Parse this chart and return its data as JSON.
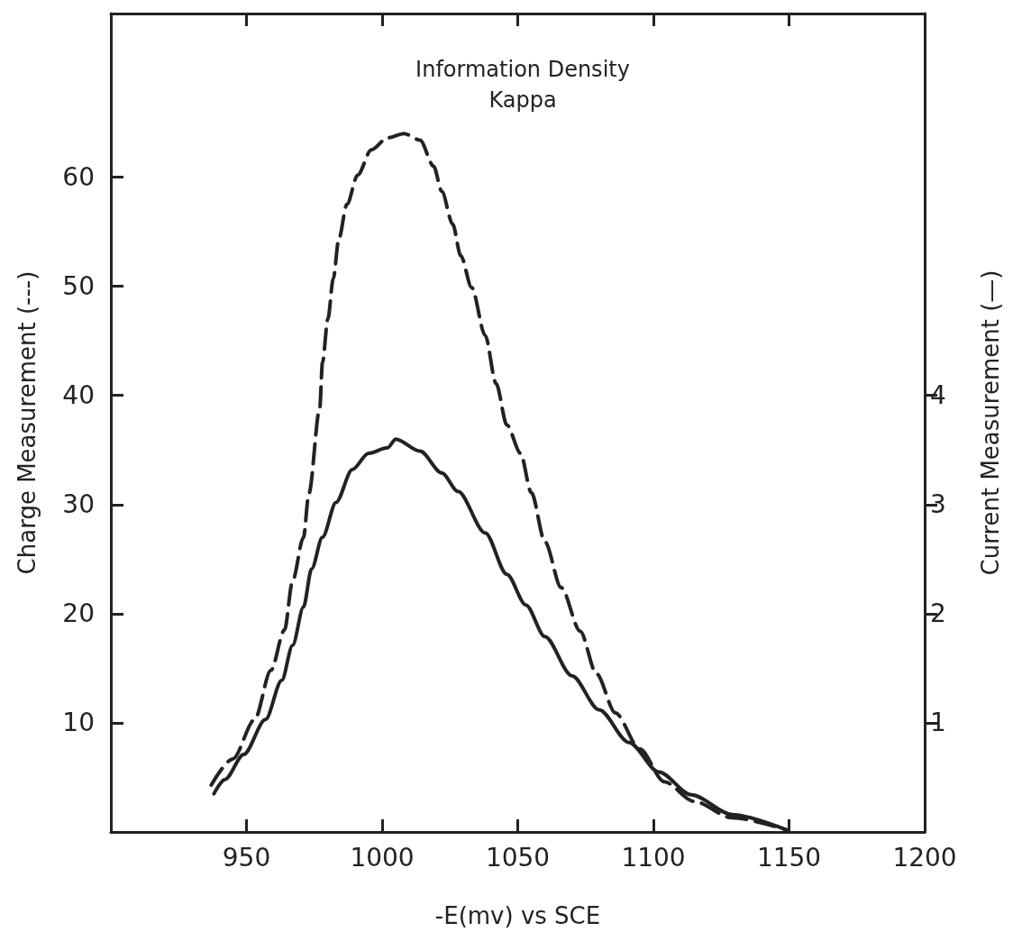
{
  "chart_data": {
    "type": "line",
    "title": "Information Density",
    "subtitle": "Kappa",
    "xlabel": "-E(mv) vs SCE",
    "ylabel": "Charge Measurement (---)",
    "y2label": "Current Measurement (—)",
    "xlim": [
      900,
      1200
    ],
    "xticks": [
      950,
      1000,
      1050,
      1100,
      1150,
      1200
    ],
    "ylim": [
      0,
      75
    ],
    "yticks": [
      10,
      20,
      30,
      40,
      50,
      60
    ],
    "y2lim": [
      0,
      7.5
    ],
    "y2ticks": [
      1,
      2,
      3,
      4
    ],
    "grid": false,
    "marker": "none",
    "series": [
      {
        "color": "#222222",
        "line_style": "dashed",
        "x": [
          937,
          945,
          953,
          959,
          964,
          967,
          971,
          973,
          977,
          978,
          980,
          982,
          984,
          987,
          991,
          996,
          1002,
          1008,
          1014,
          1019,
          1022,
          1026,
          1029,
          1033,
          1038,
          1042,
          1046,
          1051,
          1055,
          1060,
          1066,
          1073,
          1079,
          1086,
          1095,
          1104,
          1115,
          1129,
          1149
        ],
        "values": [
          4.3,
          6.7,
          10.3,
          14.8,
          18.5,
          23,
          27,
          31,
          38.8,
          43,
          47,
          50.7,
          54.3,
          57.5,
          60.2,
          62.5,
          63.6,
          64,
          63.4,
          61,
          58.7,
          55.7,
          52.8,
          49.9,
          45.5,
          41.1,
          37.3,
          34.7,
          31.1,
          26.6,
          22.4,
          18.4,
          14.5,
          10.9,
          7.6,
          4.6,
          2.8,
          1.3,
          0.2
        ]
      },
      {
        "color": "#222222",
        "line_style": "solid",
        "axis": "y2",
        "x": [
          938,
          942,
          949,
          957,
          963,
          967,
          971,
          974,
          978,
          983,
          989,
          995,
          1002,
          1005,
          1014,
          1022,
          1028,
          1038,
          1046,
          1053,
          1060,
          1070,
          1080,
          1091,
          1102,
          1114,
          1129,
          1149
        ],
        "values": [
          0.35,
          0.48,
          0.71,
          1.03,
          1.39,
          1.71,
          2.06,
          2.41,
          2.7,
          3.02,
          3.32,
          3.47,
          3.52,
          3.6,
          3.49,
          3.29,
          3.12,
          2.74,
          2.36,
          2.08,
          1.79,
          1.43,
          1.12,
          0.82,
          0.55,
          0.34,
          0.16,
          0.02
        ]
      }
    ]
  }
}
